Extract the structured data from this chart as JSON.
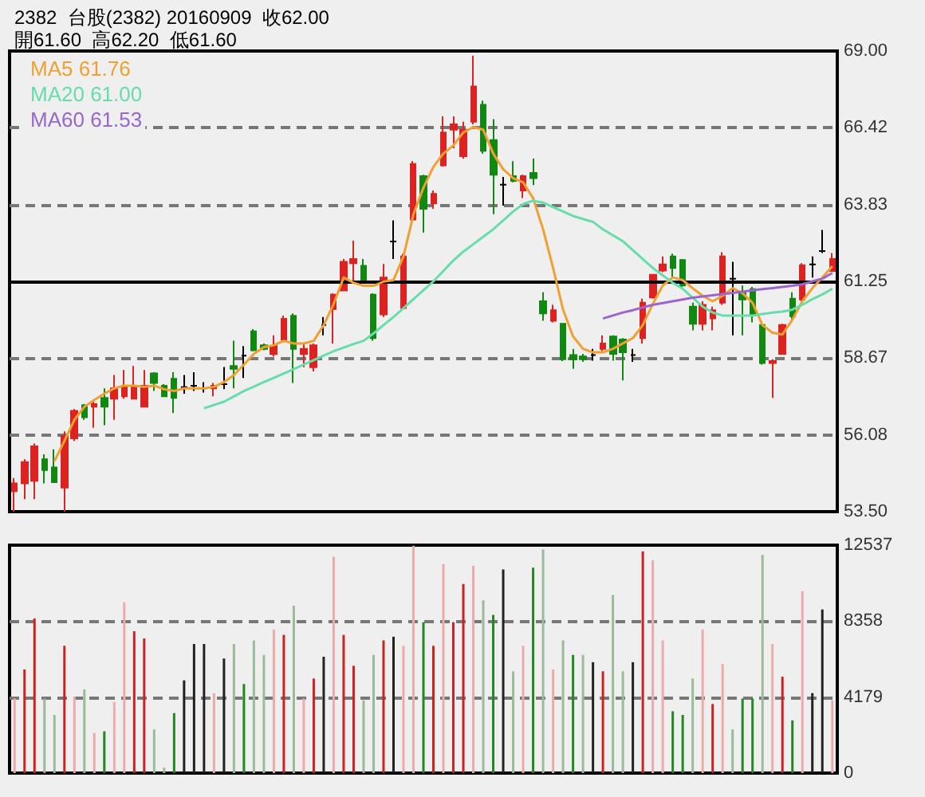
{
  "chart_data": [
    {
      "type": "candlestick",
      "title": "2382  台股(2382) 20160909  收62.00",
      "subtitle": "開61.60  高62.20  低61.60",
      "categories": [
        null,
        null,
        null,
        null,
        null,
        null,
        null,
        null,
        null,
        null,
        null,
        null,
        null,
        null,
        null,
        null,
        null,
        null,
        null,
        null,
        null,
        null,
        null,
        null,
        null,
        null,
        null,
        null,
        null,
        null,
        null,
        null,
        null,
        null,
        null,
        null,
        null,
        null,
        null,
        null,
        null,
        null,
        null,
        null,
        null,
        null,
        null,
        null,
        null,
        null,
        null,
        null,
        null,
        null,
        null,
        null,
        null,
        null,
        null,
        null,
        null,
        null,
        null,
        null,
        null,
        null,
        null,
        null,
        null,
        null,
        null,
        null,
        null,
        null,
        null,
        null,
        null,
        null,
        null,
        null,
        null,
        null,
        null
      ],
      "ohlc": [
        [
          54.19,
          54.63,
          53.5,
          54.45
        ],
        [
          54.45,
          55.26,
          53.92,
          55.17
        ],
        [
          54.54,
          55.79,
          53.92,
          55.7
        ],
        [
          55.26,
          55.43,
          54.45,
          54.9
        ],
        [
          54.99,
          55.6,
          54.49,
          54.49
        ],
        [
          54.31,
          56.2,
          53.5,
          56.05
        ],
        [
          55.97,
          56.95,
          55.88,
          56.89
        ],
        [
          57.08,
          57.12,
          56.59,
          56.68
        ],
        [
          57.03,
          57.21,
          56.32,
          57.12
        ],
        [
          57.33,
          57.65,
          56.41,
          57.03
        ],
        [
          57.3,
          58.1,
          56.59,
          57.65
        ],
        [
          57.38,
          58.27,
          57.3,
          57.74
        ],
        [
          57.3,
          58.4,
          57.3,
          57.74
        ],
        [
          57.03,
          58.27,
          57.03,
          57.74
        ],
        [
          58.15,
          58.19,
          57.56,
          57.83
        ],
        [
          57.74,
          57.79,
          57.38,
          57.38
        ],
        [
          57.97,
          58.19,
          56.82,
          57.33
        ],
        [
          57.69,
          58.1,
          57.47,
          57.69
        ],
        [
          57.74,
          58.19,
          57.56,
          57.74
        ],
        [
          57.65,
          57.86,
          57.51,
          57.65
        ],
        [
          57.65,
          57.83,
          57.38,
          57.74
        ],
        [
          57.79,
          58.37,
          57.62,
          57.79
        ],
        [
          58.4,
          59.25,
          57.65,
          58.31
        ],
        [
          58.75,
          59.07,
          58.0,
          58.75
        ],
        [
          59.57,
          59.64,
          58.9,
          58.93
        ],
        [
          59.1,
          59.16,
          58.93,
          58.98
        ],
        [
          58.8,
          59.43,
          58.72,
          59.07
        ],
        [
          59.29,
          60.1,
          59.2,
          59.99
        ],
        [
          60.09,
          60.17,
          57.83,
          58.98
        ],
        [
          58.8,
          59.16,
          58.36,
          58.98
        ],
        [
          58.36,
          59.16,
          58.22,
          59.1
        ],
        [
          59.78,
          60.05,
          59.43,
          59.78
        ],
        [
          60.32,
          60.85,
          59.16,
          60.8
        ],
        [
          60.94,
          62.0,
          60.94,
          61.91
        ],
        [
          61.86,
          62.62,
          61.2,
          62.0
        ],
        [
          61.77,
          62.0,
          61.2,
          61.29
        ],
        [
          60.8,
          60.85,
          59.25,
          59.34
        ],
        [
          60.14,
          61.83,
          60.05,
          61.38
        ],
        [
          62.59,
          63.3,
          62.0,
          62.59
        ],
        [
          60.35,
          62.18,
          60.3,
          62.09
        ],
        [
          63.33,
          65.29,
          63.33,
          65.2
        ],
        [
          64.79,
          64.84,
          62.89,
          63.69
        ],
        [
          63.87,
          64.31,
          63.69,
          64.19
        ],
        [
          65.15,
          66.8,
          65.11,
          66.26
        ],
        [
          66.35,
          66.8,
          65.73,
          66.53
        ],
        [
          65.46,
          66.62,
          65.38,
          66.35
        ],
        [
          66.62,
          68.84,
          66.53,
          67.81
        ],
        [
          67.19,
          67.33,
          65.55,
          65.64
        ],
        [
          66.0,
          66.71,
          63.51,
          64.84
        ],
        [
          64.5,
          64.76,
          63.8,
          64.5
        ],
        [
          64.79,
          65.29,
          64.58,
          64.63
        ],
        [
          64.31,
          64.84,
          64.05,
          64.79
        ],
        [
          64.9,
          65.38,
          64.49,
          64.72
        ],
        [
          60.58,
          60.88,
          59.92,
          60.17
        ],
        [
          59.92,
          60.46,
          59.87,
          60.28
        ],
        [
          59.82,
          59.82,
          58.57,
          58.63
        ],
        [
          58.77,
          58.98,
          58.31,
          58.63
        ],
        [
          58.72,
          58.81,
          58.54,
          58.63
        ],
        [
          58.77,
          58.98,
          58.58,
          58.77
        ],
        [
          58.98,
          59.43,
          58.9,
          59.16
        ],
        [
          59.39,
          59.43,
          58.58,
          58.81
        ],
        [
          59.29,
          59.34,
          57.92,
          58.86
        ],
        [
          58.77,
          58.98,
          58.54,
          58.77
        ],
        [
          59.34,
          60.67,
          59.16,
          60.53
        ],
        [
          60.71,
          61.47,
          60.67,
          61.47
        ],
        [
          61.61,
          62.09,
          61.56,
          61.82
        ],
        [
          62.09,
          62.18,
          61.38,
          61.7
        ],
        [
          61.97,
          62.0,
          61.02,
          61.11
        ],
        [
          60.4,
          60.53,
          59.6,
          59.82
        ],
        [
          59.82,
          60.58,
          59.6,
          60.46
        ],
        [
          60.0,
          60.4,
          59.6,
          60.28
        ],
        [
          60.53,
          62.23,
          60.46,
          62.09
        ],
        [
          61.34,
          61.91,
          59.43,
          61.34
        ],
        [
          60.85,
          61.11,
          59.43,
          60.64
        ],
        [
          60.99,
          61.06,
          59.87,
          60.1
        ],
        [
          59.78,
          59.82,
          58.45,
          58.5
        ],
        [
          58.5,
          58.63,
          57.33,
          58.57
        ],
        [
          58.81,
          59.82,
          58.81,
          59.78
        ],
        [
          60.67,
          60.88,
          59.96,
          60.08
        ],
        [
          60.64,
          61.86,
          60.58,
          61.79
        ],
        [
          61.82,
          62.09,
          61.38,
          61.82
        ],
        [
          62.27,
          62.98,
          62.2,
          62.27
        ],
        [
          61.6,
          62.2,
          61.6,
          62.0
        ]
      ],
      "colors": [
        "#dd2222",
        "#dd2222",
        "#dd2222",
        "#118811",
        "#118811",
        "#dd2222",
        "#dd2222",
        "#118811",
        "#dd2222",
        "#118811",
        "#dd2222",
        "#dd2222",
        "#dd2222",
        "#dd2222",
        "#118811",
        "#118811",
        "#118811",
        "#000000",
        "#000000",
        "#000000",
        "#dd2222",
        "#000000",
        "#118811",
        "#000000",
        "#118811",
        "#118811",
        "#dd2222",
        "#dd2222",
        "#118811",
        "#dd2222",
        "#dd2222",
        "#000000",
        "#dd2222",
        "#dd2222",
        "#dd2222",
        "#118811",
        "#118811",
        "#dd2222",
        "#000000",
        "#dd2222",
        "#dd2222",
        "#118811",
        "#dd2222",
        "#dd2222",
        "#dd2222",
        "#dd2222",
        "#dd2222",
        "#118811",
        "#118811",
        "#000000",
        "#118811",
        "#dd2222",
        "#118811",
        "#118811",
        "#dd2222",
        "#118811",
        "#118811",
        "#118811",
        "#000000",
        "#dd2222",
        "#118811",
        "#118811",
        "#000000",
        "#dd2222",
        "#dd2222",
        "#dd2222",
        "#118811",
        "#118811",
        "#118811",
        "#dd2222",
        "#dd2222",
        "#dd2222",
        "#000000",
        "#118811",
        "#118811",
        "#118811",
        "#dd2222",
        "#dd2222",
        "#118811",
        "#dd2222",
        "#000000",
        "#000000",
        "#dd2222"
      ],
      "series": [
        {
          "type": "line",
          "name": "MA5 61.76",
          "color": "#f0a030",
          "values": [
            null,
            null,
            null,
            null,
            55.2,
            55.88,
            56.59,
            57.03,
            57.26,
            57.47,
            57.65,
            57.74,
            57.74,
            57.7,
            57.74,
            57.62,
            57.56,
            57.65,
            57.65,
            57.65,
            57.7,
            57.86,
            58.1,
            58.45,
            58.81,
            59.04,
            59.1,
            59.25,
            59.16,
            59.16,
            59.25,
            59.78,
            60.49,
            61.38,
            61.2,
            61.1,
            61.1,
            61.24,
            61.29,
            62.09,
            63.5,
            64.4,
            65.1,
            65.55,
            65.82,
            66.26,
            66.44,
            66.35,
            65.55,
            65.02,
            64.72,
            64.58,
            64.05,
            63.0,
            61.7,
            60.3,
            59.4,
            58.98,
            58.86,
            58.86,
            58.98,
            59.16,
            59.34,
            59.78,
            60.49,
            61.11,
            61.38,
            61.29,
            61.02,
            60.76,
            60.58,
            60.76,
            61.02,
            60.85,
            60.53,
            59.78,
            59.52,
            59.46,
            59.96,
            60.58,
            61.02,
            61.38,
            61.76
          ]
        },
        {
          "type": "line",
          "name": "MA20 61.00",
          "color": "#66ddaa",
          "values": [
            null,
            null,
            null,
            null,
            null,
            null,
            null,
            null,
            null,
            null,
            null,
            null,
            null,
            null,
            null,
            null,
            null,
            null,
            null,
            56.98,
            57.09,
            57.2,
            57.38,
            57.56,
            57.71,
            57.86,
            58.0,
            58.15,
            58.3,
            58.45,
            58.6,
            58.75,
            58.9,
            59.02,
            59.14,
            59.25,
            59.5,
            59.78,
            60.05,
            60.35,
            60.65,
            60.95,
            61.25,
            61.6,
            61.95,
            62.25,
            62.5,
            62.75,
            63.0,
            63.3,
            63.6,
            63.85,
            63.96,
            63.9,
            63.75,
            63.6,
            63.45,
            63.35,
            63.25,
            63.0,
            62.8,
            62.6,
            62.3,
            62.0,
            61.7,
            61.45,
            61.2,
            61.0,
            60.7,
            60.4,
            60.2,
            60.1,
            60.1,
            60.1,
            60.1,
            60.15,
            60.2,
            60.23,
            60.3,
            60.46,
            60.65,
            60.81,
            61.0
          ]
        },
        {
          "type": "line",
          "name": "MA60 61.53",
          "color": "#9966cc",
          "values": [
            null,
            null,
            null,
            null,
            null,
            null,
            null,
            null,
            null,
            null,
            null,
            null,
            null,
            null,
            null,
            null,
            null,
            null,
            null,
            null,
            null,
            null,
            null,
            null,
            null,
            null,
            null,
            null,
            null,
            null,
            null,
            null,
            null,
            null,
            null,
            null,
            null,
            null,
            null,
            null,
            null,
            null,
            null,
            null,
            null,
            null,
            null,
            null,
            null,
            null,
            null,
            null,
            null,
            null,
            null,
            null,
            null,
            null,
            null,
            60.0,
            60.1,
            60.2,
            60.28,
            60.37,
            60.46,
            60.52,
            60.58,
            60.64,
            60.7,
            60.74,
            60.78,
            60.82,
            60.86,
            60.9,
            60.95,
            60.99,
            61.02,
            61.06,
            61.1,
            61.15,
            61.25,
            61.34,
            61.53
          ]
        }
      ],
      "ylim": [
        53.5,
        69.0
      ],
      "yticks": [
        {
          "value": 53.5,
          "label": "53.50"
        },
        {
          "value": 56.08,
          "label": "56.08"
        },
        {
          "value": 58.67,
          "label": "58.67"
        },
        {
          "value": 61.25,
          "label": "61.25"
        },
        {
          "value": 63.83,
          "label": "63.83"
        },
        {
          "value": 66.42,
          "label": "66.42"
        },
        {
          "value": 69.0,
          "label": "69.00"
        }
      ],
      "ref_lines": [
        {
          "axis": "y",
          "value": 61.25,
          "color": "#000000",
          "line_style": "solid"
        }
      ],
      "grid": "y",
      "legend": "top left",
      "tick_labels": "y"
    },
    {
      "type": "bar",
      "categories": [
        null,
        null,
        null,
        null,
        null,
        null,
        null,
        null,
        null,
        null,
        null,
        null,
        null,
        null,
        null,
        null,
        null,
        null,
        null,
        null,
        null,
        null,
        null,
        null,
        null,
        null,
        null,
        null,
        null,
        null,
        null,
        null,
        null,
        null,
        null,
        null,
        null,
        null,
        null,
        null,
        null,
        null,
        null,
        null,
        null,
        null,
        null,
        null,
        null,
        null,
        null,
        null,
        null,
        null,
        null,
        null,
        null,
        null,
        null,
        null,
        null,
        null,
        null,
        null,
        null,
        null,
        null,
        null,
        null,
        null,
        null,
        null,
        null,
        null,
        null,
        null,
        null,
        null,
        null,
        null,
        null,
        null,
        null
      ],
      "values": [
        4100,
        5700,
        8500,
        4100,
        3200,
        7000,
        4200,
        4600,
        2200,
        2300,
        3900,
        9400,
        7800,
        7400,
        2400,
        300,
        3300,
        5100,
        7100,
        7100,
        4400,
        6300,
        7100,
        4900,
        7300,
        6500,
        7900,
        7600,
        9200,
        4100,
        5200,
        6400,
        11900,
        7600,
        5900,
        4000,
        6500,
        7300,
        7500,
        7000,
        12500,
        8300,
        7000,
        11500,
        8300,
        10400,
        11400,
        9500,
        8700,
        11200,
        5600,
        7000,
        11300,
        12300,
        5700,
        7300,
        6500,
        6500,
        6100,
        5600,
        9800,
        5600,
        6100,
        12200,
        11700,
        7300,
        3400,
        3200,
        5200,
        7900,
        3800,
        6000,
        2400,
        4100,
        4100,
        12000,
        7100,
        5300,
        2900,
        10000,
        4400,
        9000,
        4000
      ],
      "colors": [
        "#eeaaaa",
        "#cc2222",
        "#cc2222",
        "#99bb99",
        "#99bb99",
        "#cc2222",
        "#eeaaaa",
        "#99bb99",
        "#eeaaaa",
        "#228822",
        "#eeaaaa",
        "#eeaaaa",
        "#cc2222",
        "#cc2222",
        "#99bb99",
        "#99bb99",
        "#228822",
        "#222222",
        "#222222",
        "#222222",
        "#eeaaaa",
        "#222222",
        "#99bb99",
        "#228822",
        "#99bb99",
        "#99bb99",
        "#eeaaaa",
        "#cc2222",
        "#99bb99",
        "#eeaaaa",
        "#cc2222",
        "#222222",
        "#eeaaaa",
        "#cc2222",
        "#cc2222",
        "#99bb99",
        "#99bb99",
        "#cc2222",
        "#222222",
        "#eeaaaa",
        "#eeaaaa",
        "#228822",
        "#cc2222",
        "#eeaaaa",
        "#cc2222",
        "#cc2222",
        "#eeaaaa",
        "#99bb99",
        "#228822",
        "#222222",
        "#99bb99",
        "#eeaaaa",
        "#228822",
        "#99bb99",
        "#eeaaaa",
        "#99bb99",
        "#228822",
        "#99bb99",
        "#222222",
        "#cc2222",
        "#99bb99",
        "#99bb99",
        "#222222",
        "#cc2222",
        "#eeaaaa",
        "#eeaaaa",
        "#228822",
        "#228822",
        "#99bb99",
        "#eeaaaa",
        "#cc2222",
        "#eeaaaa",
        "#99bb99",
        "#228822",
        "#228822",
        "#99bb99",
        "#eeaaaa",
        "#cc2222",
        "#228822",
        "#eeaaaa",
        "#222222",
        "#222222",
        "#eeaaaa"
      ],
      "ylim": [
        0,
        12537
      ],
      "yticks": [
        0,
        4179,
        8358,
        12537
      ],
      "grid": "y",
      "tick_labels": "y"
    }
  ]
}
